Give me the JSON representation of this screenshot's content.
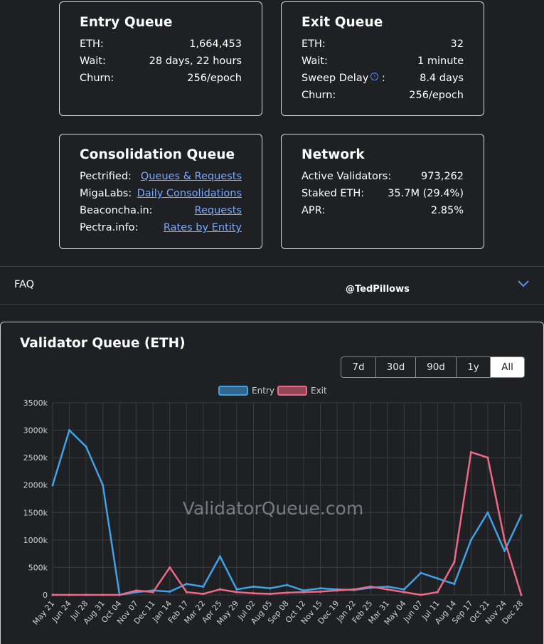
{
  "cards": {
    "entry": {
      "title": "Entry Queue",
      "rows": [
        {
          "label": "ETH:",
          "value": "1,664,453"
        },
        {
          "label": "Wait:",
          "value": "28 days, 22 hours"
        },
        {
          "label": "Churn:",
          "value": "256/epoch"
        }
      ]
    },
    "exit": {
      "title": "Exit Queue",
      "rows": [
        {
          "label": "ETH:",
          "value": "32"
        },
        {
          "label": "Wait:",
          "value": "1 minute"
        },
        {
          "label": "Sweep Delay",
          "value": "8.4 days"
        },
        {
          "label": "Churn:",
          "value": "256/epoch"
        }
      ],
      "sweep_colon": ":",
      "info_glyph": "i"
    },
    "consolidation": {
      "title": "Consolidation Queue",
      "rows": [
        {
          "label": "Pectrified:",
          "link": "Queues & Requests"
        },
        {
          "label": "MigaLabs:",
          "link": "Daily Consolidations"
        },
        {
          "label": "Beaconcha.in:",
          "link": "Requests"
        },
        {
          "label": "Pectra.info:",
          "link": "Rates by Entity"
        }
      ]
    },
    "network": {
      "title": "Network",
      "rows": [
        {
          "label": "Active Validators:",
          "value": "973,262"
        },
        {
          "label": "Staked ETH:",
          "value": "35.7M (29.4%)"
        },
        {
          "label": "APR:",
          "value": "2.85%"
        }
      ]
    }
  },
  "faq": {
    "label": "FAQ",
    "handle": "@TedPillows"
  },
  "chart_panel": {
    "title": "Validator Queue (ETH)",
    "ranges": [
      "7d",
      "30d",
      "90d",
      "1y",
      "All"
    ],
    "active_range": "All"
  },
  "colors": {
    "entry": "#3fa2e6",
    "exit": "#ec6a86",
    "grid": "#3a3c40",
    "text": "#d0d0d0"
  },
  "chart_data": {
    "type": "line",
    "title": "Validator Queue (ETH)",
    "watermark": "ValidatorQueue.com",
    "xlabel": "",
    "ylabel": "",
    "ylim": [
      0,
      3500
    ],
    "y_unit": "k",
    "y_ticks": [
      "0",
      "500k",
      "1000k",
      "1500k",
      "2000k",
      "2500k",
      "3000k",
      "3500k"
    ],
    "categories": [
      "May 21",
      "Jun 24",
      "Jul 28",
      "Aug 31",
      "Oct 04",
      "Nov 07",
      "Dec 11",
      "Jan 14",
      "Feb 17",
      "Mar 22",
      "Apr 25",
      "May 29",
      "Jul 02",
      "Aug 05",
      "Sep 08",
      "Oct 12",
      "Nov 15",
      "Dec 19",
      "Jan 22",
      "Feb 25",
      "Mar 31",
      "May 04",
      "Jun 07",
      "Jul 11",
      "Aug 14",
      "Sep 17",
      "Oct 21",
      "Nov 24",
      "Dec 28"
    ],
    "legend": [
      "Entry",
      "Exit"
    ],
    "legend_position": "top-center",
    "series": [
      {
        "name": "Entry",
        "values": [
          2000,
          3000,
          2700,
          2000,
          0,
          50,
          80,
          60,
          200,
          150,
          700,
          100,
          150,
          120,
          180,
          80,
          120,
          100,
          90,
          130,
          150,
          100,
          400,
          300,
          200,
          1000,
          1500,
          800,
          1450
        ]
      },
      {
        "name": "Exit",
        "values": [
          0,
          0,
          0,
          0,
          0,
          80,
          50,
          500,
          50,
          20,
          100,
          50,
          30,
          20,
          40,
          50,
          60,
          80,
          100,
          150,
          100,
          50,
          0,
          50,
          600,
          2600,
          2500,
          1000,
          0
        ]
      }
    ]
  }
}
